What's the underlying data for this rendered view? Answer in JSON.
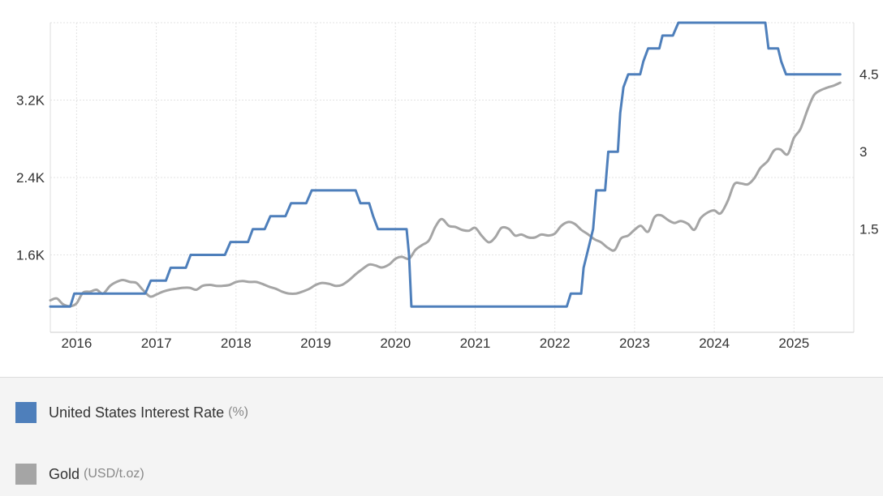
{
  "chart_data": {
    "type": "line",
    "title": "",
    "xlabel": "",
    "x_ticks": [
      "2016",
      "2017",
      "2018",
      "2019",
      "2020",
      "2021",
      "2022",
      "2023",
      "2024",
      "2025"
    ],
    "y_left": {
      "ticks": [
        "1.6K",
        "2.4K",
        "3.2K"
      ],
      "tick_values": [
        1600,
        2400,
        3200
      ],
      "range": [
        800,
        4000
      ]
    },
    "y_right": {
      "ticks": [
        "1.5",
        "3",
        "4.5"
      ],
      "tick_values": [
        1.5,
        3,
        4.5
      ],
      "range": [
        -0.5,
        5.5
      ]
    },
    "grid": true,
    "legend_position": "bottom",
    "x_range": [
      2015.67,
      2025.75
    ],
    "series": [
      {
        "name": "United States Interest Rate",
        "unit": "%",
        "axis": "right",
        "color": "#4e7fbb",
        "shape": "step",
        "points": [
          [
            2015.67,
            0.0
          ],
          [
            2015.92,
            0.0
          ],
          [
            2015.97,
            0.25
          ],
          [
            2016.86,
            0.25
          ],
          [
            2016.93,
            0.5
          ],
          [
            2017.12,
            0.5
          ],
          [
            2017.18,
            0.75
          ],
          [
            2017.37,
            0.75
          ],
          [
            2017.43,
            1.0
          ],
          [
            2017.86,
            1.0
          ],
          [
            2017.93,
            1.25
          ],
          [
            2018.15,
            1.25
          ],
          [
            2018.21,
            1.5
          ],
          [
            2018.36,
            1.5
          ],
          [
            2018.43,
            1.75
          ],
          [
            2018.62,
            1.75
          ],
          [
            2018.69,
            2.0
          ],
          [
            2018.88,
            2.0
          ],
          [
            2018.95,
            2.25
          ],
          [
            2019.5,
            2.25
          ],
          [
            2019.56,
            2.0
          ],
          [
            2019.67,
            2.0
          ],
          [
            2019.72,
            1.75
          ],
          [
            2019.78,
            1.5
          ],
          [
            2020.14,
            1.5
          ],
          [
            2020.17,
            1.0
          ],
          [
            2020.2,
            0.0
          ],
          [
            2022.15,
            0.0
          ],
          [
            2022.2,
            0.25
          ],
          [
            2022.33,
            0.25
          ],
          [
            2022.36,
            0.75
          ],
          [
            2022.48,
            1.5
          ],
          [
            2022.52,
            2.25
          ],
          [
            2022.63,
            2.25
          ],
          [
            2022.67,
            3.0
          ],
          [
            2022.79,
            3.0
          ],
          [
            2022.82,
            3.75
          ],
          [
            2022.86,
            4.25
          ],
          [
            2022.92,
            4.5
          ],
          [
            2023.07,
            4.5
          ],
          [
            2023.11,
            4.75
          ],
          [
            2023.17,
            5.0
          ],
          [
            2023.31,
            5.0
          ],
          [
            2023.35,
            5.25
          ],
          [
            2023.48,
            5.25
          ],
          [
            2023.55,
            5.5
          ],
          [
            2024.64,
            5.5
          ],
          [
            2024.68,
            5.0
          ],
          [
            2024.8,
            5.0
          ],
          [
            2024.84,
            4.75
          ],
          [
            2024.9,
            4.5
          ],
          [
            2025.58,
            4.5
          ]
        ]
      },
      {
        "name": "Gold",
        "unit": "USD/t.oz",
        "axis": "left",
        "color": "#a5a5a5",
        "shape": "smooth",
        "points": [
          [
            2015.67,
            1130
          ],
          [
            2015.75,
            1150
          ],
          [
            2015.83,
            1090
          ],
          [
            2015.92,
            1070
          ],
          [
            2016.0,
            1100
          ],
          [
            2016.08,
            1210
          ],
          [
            2016.17,
            1220
          ],
          [
            2016.25,
            1240
          ],
          [
            2016.33,
            1200
          ],
          [
            2016.42,
            1280
          ],
          [
            2016.5,
            1320
          ],
          [
            2016.58,
            1340
          ],
          [
            2016.67,
            1320
          ],
          [
            2016.75,
            1310
          ],
          [
            2016.83,
            1240
          ],
          [
            2016.92,
            1170
          ],
          [
            2017.0,
            1190
          ],
          [
            2017.08,
            1220
          ],
          [
            2017.17,
            1240
          ],
          [
            2017.25,
            1250
          ],
          [
            2017.33,
            1260
          ],
          [
            2017.42,
            1260
          ],
          [
            2017.5,
            1240
          ],
          [
            2017.58,
            1280
          ],
          [
            2017.67,
            1290
          ],
          [
            2017.75,
            1280
          ],
          [
            2017.83,
            1280
          ],
          [
            2017.92,
            1290
          ],
          [
            2018.0,
            1320
          ],
          [
            2018.08,
            1330
          ],
          [
            2018.17,
            1320
          ],
          [
            2018.25,
            1320
          ],
          [
            2018.33,
            1300
          ],
          [
            2018.42,
            1270
          ],
          [
            2018.5,
            1250
          ],
          [
            2018.58,
            1220
          ],
          [
            2018.67,
            1200
          ],
          [
            2018.75,
            1200
          ],
          [
            2018.83,
            1220
          ],
          [
            2018.92,
            1250
          ],
          [
            2019.0,
            1290
          ],
          [
            2019.08,
            1310
          ],
          [
            2019.17,
            1300
          ],
          [
            2019.25,
            1280
          ],
          [
            2019.33,
            1290
          ],
          [
            2019.42,
            1340
          ],
          [
            2019.5,
            1400
          ],
          [
            2019.58,
            1450
          ],
          [
            2019.67,
            1500
          ],
          [
            2019.75,
            1490
          ],
          [
            2019.83,
            1470
          ],
          [
            2019.92,
            1500
          ],
          [
            2020.0,
            1560
          ],
          [
            2020.08,
            1580
          ],
          [
            2020.17,
            1560
          ],
          [
            2020.25,
            1650
          ],
          [
            2020.33,
            1700
          ],
          [
            2020.42,
            1750
          ],
          [
            2020.5,
            1890
          ],
          [
            2020.58,
            1970
          ],
          [
            2020.67,
            1900
          ],
          [
            2020.75,
            1890
          ],
          [
            2020.83,
            1860
          ],
          [
            2020.92,
            1850
          ],
          [
            2021.0,
            1880
          ],
          [
            2021.08,
            1800
          ],
          [
            2021.17,
            1730
          ],
          [
            2021.25,
            1780
          ],
          [
            2021.33,
            1880
          ],
          [
            2021.42,
            1870
          ],
          [
            2021.5,
            1800
          ],
          [
            2021.58,
            1810
          ],
          [
            2021.67,
            1780
          ],
          [
            2021.75,
            1780
          ],
          [
            2021.83,
            1810
          ],
          [
            2021.92,
            1800
          ],
          [
            2022.0,
            1820
          ],
          [
            2022.08,
            1900
          ],
          [
            2022.17,
            1940
          ],
          [
            2022.25,
            1920
          ],
          [
            2022.33,
            1860
          ],
          [
            2022.42,
            1810
          ],
          [
            2022.5,
            1760
          ],
          [
            2022.58,
            1730
          ],
          [
            2022.67,
            1670
          ],
          [
            2022.75,
            1650
          ],
          [
            2022.83,
            1770
          ],
          [
            2022.92,
            1800
          ],
          [
            2023.0,
            1860
          ],
          [
            2023.08,
            1900
          ],
          [
            2023.17,
            1840
          ],
          [
            2023.25,
            1990
          ],
          [
            2023.33,
            2010
          ],
          [
            2023.42,
            1960
          ],
          [
            2023.5,
            1930
          ],
          [
            2023.58,
            1950
          ],
          [
            2023.67,
            1920
          ],
          [
            2023.75,
            1860
          ],
          [
            2023.83,
            1980
          ],
          [
            2023.92,
            2040
          ],
          [
            2024.0,
            2060
          ],
          [
            2024.08,
            2030
          ],
          [
            2024.17,
            2160
          ],
          [
            2024.25,
            2330
          ],
          [
            2024.33,
            2340
          ],
          [
            2024.42,
            2330
          ],
          [
            2024.5,
            2390
          ],
          [
            2024.58,
            2500
          ],
          [
            2024.67,
            2570
          ],
          [
            2024.75,
            2680
          ],
          [
            2024.83,
            2690
          ],
          [
            2024.92,
            2640
          ],
          [
            2025.0,
            2810
          ],
          [
            2025.08,
            2900
          ],
          [
            2025.17,
            3100
          ],
          [
            2025.25,
            3250
          ],
          [
            2025.33,
            3300
          ],
          [
            2025.42,
            3330
          ],
          [
            2025.5,
            3350
          ],
          [
            2025.58,
            3380
          ]
        ]
      }
    ]
  },
  "legend": {
    "items": [
      {
        "name": "United States Interest Rate",
        "unit": "(%)",
        "color": "#4e7fbb"
      },
      {
        "name": "Gold",
        "unit": "(USD/t.oz)",
        "color": "#a5a5a5"
      }
    ]
  }
}
